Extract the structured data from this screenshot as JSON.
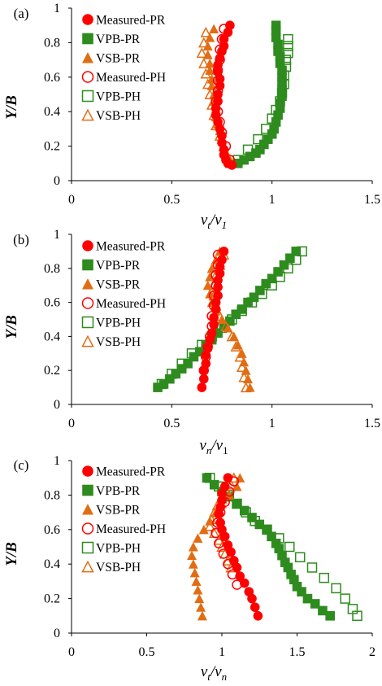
{
  "colors": {
    "measured": "#ff0000",
    "vpb": "#2e8b1e",
    "vsb": "#e26c12"
  },
  "legend": [
    "Measured-PR",
    "VPB-PR",
    "VSB-PR",
    "Measured-PH",
    "VPB-PH",
    "VSB-PH"
  ],
  "chart_data": [
    {
      "type": "scatter",
      "panel": "(a)",
      "ylabel": "Y/B",
      "xlabel_main": "v",
      "xlabel_sub": "t",
      "xlabel_den": "v",
      "xlabel_den_sub": "1",
      "xlim": [
        0,
        1.5
      ],
      "ylim": [
        0,
        1
      ],
      "xticks": [
        "0",
        "0.5",
        "1",
        "1.5"
      ],
      "yticks": [
        "0",
        "0.2",
        "0.4",
        "0.6",
        "0.8",
        "1"
      ],
      "series": [
        {
          "name": "Measured-PR",
          "x": [
            0.79,
            0.78,
            0.76,
            0.76,
            0.75,
            0.74,
            0.73,
            0.73,
            0.74,
            0.74,
            0.73,
            0.73,
            0.72,
            0.72,
            0.73,
            0.74,
            0.75,
            0.75,
            0.76,
            0.76,
            0.77,
            0.78,
            0.8
          ],
          "y": [
            0.9,
            0.86,
            0.82,
            0.78,
            0.75,
            0.71,
            0.67,
            0.63,
            0.59,
            0.55,
            0.5,
            0.46,
            0.42,
            0.38,
            0.34,
            0.3,
            0.26,
            0.22,
            0.18,
            0.15,
            0.12,
            0.1,
            0.09
          ]
        },
        {
          "name": "VPB-PR",
          "x": [
            1.02,
            1.02,
            1.02,
            1.03,
            1.03,
            1.04,
            1.04,
            1.05,
            1.05,
            1.05,
            1.05,
            1.05,
            1.04,
            1.04,
            1.03,
            1.02,
            1.01,
            1.0,
            0.98,
            0.96,
            0.94,
            0.92,
            0.89,
            0.86,
            0.83
          ],
          "y": [
            0.9,
            0.87,
            0.83,
            0.79,
            0.75,
            0.72,
            0.68,
            0.64,
            0.6,
            0.57,
            0.53,
            0.49,
            0.45,
            0.42,
            0.38,
            0.34,
            0.3,
            0.27,
            0.24,
            0.21,
            0.18,
            0.16,
            0.14,
            0.12,
            0.1
          ]
        },
        {
          "name": "VSB-PR",
          "x": [
            0.71,
            0.69,
            0.68,
            0.68,
            0.69,
            0.69,
            0.7,
            0.7,
            0.71,
            0.71,
            0.72,
            0.72,
            0.73,
            0.74,
            0.75,
            0.76,
            0.77,
            0.78,
            0.79
          ],
          "y": [
            0.88,
            0.83,
            0.78,
            0.73,
            0.68,
            0.64,
            0.59,
            0.55,
            0.5,
            0.46,
            0.42,
            0.37,
            0.33,
            0.29,
            0.24,
            0.2,
            0.16,
            0.13,
            0.1
          ]
        },
        {
          "name": "Measured-PH",
          "x": [
            0.76,
            0.75,
            0.74,
            0.74,
            0.73,
            0.73,
            0.73,
            0.72,
            0.73,
            0.74,
            0.75,
            0.77,
            0.79
          ],
          "y": [
            0.88,
            0.82,
            0.76,
            0.7,
            0.64,
            0.58,
            0.52,
            0.46,
            0.4,
            0.34,
            0.28,
            0.2,
            0.12
          ]
        },
        {
          "name": "VPB-PH",
          "x": [
            1.08,
            1.08,
            1.08,
            1.07,
            1.07,
            1.06,
            1.06,
            1.05,
            1.04,
            1.02,
            1.0,
            0.97,
            0.93,
            0.88,
            0.83
          ],
          "y": [
            0.82,
            0.78,
            0.74,
            0.7,
            0.66,
            0.61,
            0.56,
            0.51,
            0.46,
            0.41,
            0.36,
            0.3,
            0.24,
            0.18,
            0.12
          ]
        },
        {
          "name": "VSB-PH",
          "x": [
            0.67,
            0.66,
            0.65,
            0.66,
            0.67,
            0.68,
            0.69,
            0.7,
            0.71,
            0.72,
            0.74,
            0.76,
            0.78
          ],
          "y": [
            0.86,
            0.8,
            0.74,
            0.68,
            0.62,
            0.56,
            0.5,
            0.44,
            0.38,
            0.32,
            0.26,
            0.2,
            0.14
          ]
        }
      ]
    },
    {
      "type": "scatter",
      "panel": "(b)",
      "ylabel": "Y/B",
      "xlabel_main": "v",
      "xlabel_sub": "n",
      "xlabel_den": "v",
      "xlabel_den_sub": "1",
      "xlim": [
        0,
        1.5
      ],
      "ylim": [
        0,
        1
      ],
      "xticks": [
        "0",
        "0.5",
        "1",
        "1.5"
      ],
      "yticks": [
        "0",
        "0.2",
        "0.4",
        "0.6",
        "0.8",
        "1"
      ],
      "series": [
        {
          "name": "Measured-PR",
          "x": [
            0.76,
            0.75,
            0.74,
            0.74,
            0.73,
            0.73,
            0.73,
            0.72,
            0.72,
            0.71,
            0.71,
            0.7,
            0.69,
            0.68,
            0.67,
            0.67,
            0.66,
            0.66,
            0.65
          ],
          "y": [
            0.9,
            0.85,
            0.81,
            0.77,
            0.73,
            0.69,
            0.64,
            0.6,
            0.56,
            0.51,
            0.47,
            0.42,
            0.38,
            0.33,
            0.29,
            0.24,
            0.2,
            0.15,
            0.1
          ]
        },
        {
          "name": "VPB-PR",
          "x": [
            1.12,
            1.09,
            1.06,
            1.03,
            1.0,
            0.97,
            0.94,
            0.91,
            0.88,
            0.85,
            0.82,
            0.79,
            0.76,
            0.73,
            0.7,
            0.67,
            0.64,
            0.61,
            0.58,
            0.55,
            0.52,
            0.49,
            0.46,
            0.43
          ],
          "y": [
            0.9,
            0.86,
            0.82,
            0.78,
            0.74,
            0.71,
            0.67,
            0.63,
            0.6,
            0.56,
            0.53,
            0.49,
            0.46,
            0.42,
            0.38,
            0.35,
            0.31,
            0.28,
            0.24,
            0.21,
            0.18,
            0.15,
            0.12,
            0.1
          ]
        },
        {
          "name": "VSB-PR",
          "x": [
            0.74,
            0.72,
            0.7,
            0.69,
            0.68,
            0.69,
            0.7,
            0.72,
            0.75,
            0.78,
            0.81,
            0.83,
            0.85,
            0.86,
            0.87,
            0.88,
            0.89
          ],
          "y": [
            0.9,
            0.85,
            0.8,
            0.75,
            0.7,
            0.65,
            0.6,
            0.55,
            0.5,
            0.45,
            0.4,
            0.35,
            0.3,
            0.25,
            0.2,
            0.15,
            0.1
          ]
        },
        {
          "name": "Measured-PH",
          "x": [
            0.73,
            0.73,
            0.72,
            0.72,
            0.71,
            0.71,
            0.7,
            0.7,
            0.69,
            0.68,
            0.67,
            0.66
          ],
          "y": [
            0.88,
            0.82,
            0.76,
            0.7,
            0.64,
            0.58,
            0.52,
            0.46,
            0.4,
            0.34,
            0.28,
            0.2
          ]
        },
        {
          "name": "VPB-PH",
          "x": [
            1.15,
            1.12,
            1.08,
            1.04,
            1.0,
            0.95,
            0.9,
            0.85,
            0.8,
            0.75,
            0.7,
            0.65,
            0.6,
            0.55,
            0.5,
            0.45
          ],
          "y": [
            0.9,
            0.85,
            0.8,
            0.75,
            0.7,
            0.65,
            0.6,
            0.55,
            0.5,
            0.45,
            0.4,
            0.35,
            0.3,
            0.24,
            0.18,
            0.12
          ]
        },
        {
          "name": "VSB-PH",
          "x": [
            0.76,
            0.74,
            0.72,
            0.71,
            0.71,
            0.72,
            0.74,
            0.77,
            0.8,
            0.82,
            0.84,
            0.85,
            0.86,
            0.87
          ],
          "y": [
            0.88,
            0.82,
            0.76,
            0.7,
            0.64,
            0.58,
            0.52,
            0.46,
            0.4,
            0.34,
            0.28,
            0.22,
            0.16,
            0.1
          ]
        }
      ]
    },
    {
      "type": "scatter",
      "panel": "(c)",
      "ylabel": "Y/B",
      "xlabel_main": "v",
      "xlabel_sub": "t",
      "xlabel_den": "v",
      "xlabel_den_sub": "n",
      "xlim": [
        0,
        2
      ],
      "ylim": [
        0,
        1
      ],
      "xticks": [
        "0",
        "0.5",
        "1",
        "1.5",
        "2"
      ],
      "yticks": [
        "0",
        "0.2",
        "0.4",
        "0.6",
        "0.8",
        "1"
      ],
      "series": [
        {
          "name": "Measured-PR",
          "x": [
            1.04,
            1.02,
            1.0,
            1.0,
            0.99,
            0.98,
            0.99,
            1.0,
            1.02,
            1.04,
            1.06,
            1.08,
            1.1,
            1.12,
            1.15,
            1.18,
            1.2,
            1.22,
            1.24
          ],
          "y": [
            0.9,
            0.85,
            0.81,
            0.77,
            0.73,
            0.69,
            0.64,
            0.6,
            0.56,
            0.51,
            0.47,
            0.42,
            0.38,
            0.33,
            0.29,
            0.24,
            0.2,
            0.15,
            0.1
          ]
        },
        {
          "name": "VPB-PR",
          "x": [
            0.9,
            0.95,
            1.0,
            1.05,
            1.1,
            1.15,
            1.2,
            1.25,
            1.3,
            1.33,
            1.36,
            1.38,
            1.4,
            1.42,
            1.44,
            1.46,
            1.48,
            1.5,
            1.53,
            1.57,
            1.62,
            1.67,
            1.72
          ],
          "y": [
            0.9,
            0.86,
            0.82,
            0.79,
            0.75,
            0.71,
            0.67,
            0.63,
            0.6,
            0.56,
            0.52,
            0.49,
            0.45,
            0.41,
            0.38,
            0.34,
            0.31,
            0.27,
            0.24,
            0.2,
            0.17,
            0.13,
            0.1
          ]
        },
        {
          "name": "VSB-PR",
          "x": [
            1.12,
            1.1,
            1.05,
            1.0,
            0.96,
            0.92,
            0.88,
            0.84,
            0.81,
            0.8,
            0.81,
            0.82,
            0.83,
            0.84,
            0.85,
            0.86,
            0.87
          ],
          "y": [
            0.9,
            0.85,
            0.8,
            0.75,
            0.7,
            0.65,
            0.6,
            0.55,
            0.5,
            0.45,
            0.4,
            0.35,
            0.3,
            0.25,
            0.2,
            0.15,
            0.1
          ]
        },
        {
          "name": "Measured-PH",
          "x": [
            1.08,
            1.05,
            1.02,
            0.99,
            0.97,
            0.96,
            0.98,
            1.01,
            1.04,
            1.07,
            1.1
          ],
          "y": [
            0.88,
            0.82,
            0.76,
            0.7,
            0.64,
            0.58,
            0.52,
            0.46,
            0.4,
            0.34,
            0.28
          ]
        },
        {
          "name": "VPB-PH",
          "x": [
            0.92,
            0.98,
            1.04,
            1.1,
            1.16,
            1.22,
            1.3,
            1.38,
            1.45,
            1.52,
            1.6,
            1.68,
            1.76,
            1.82,
            1.87,
            1.9
          ],
          "y": [
            0.9,
            0.85,
            0.8,
            0.75,
            0.7,
            0.65,
            0.6,
            0.55,
            0.5,
            0.44,
            0.38,
            0.32,
            0.26,
            0.2,
            0.14,
            0.1
          ]
        },
        {
          "name": "VSB-PH",
          "x": [
            1.08,
            1.06,
            1.03,
            1.0,
            0.97,
            0.95,
            0.93,
            0.92,
            0.95,
            0.98,
            1.0,
            1.02,
            1.04,
            1.06
          ],
          "y": [
            0.9,
            0.86,
            0.82,
            0.78,
            0.74,
            0.7,
            0.66,
            0.62,
            0.58,
            0.54,
            0.5,
            0.46,
            0.42,
            0.38
          ]
        }
      ]
    }
  ]
}
